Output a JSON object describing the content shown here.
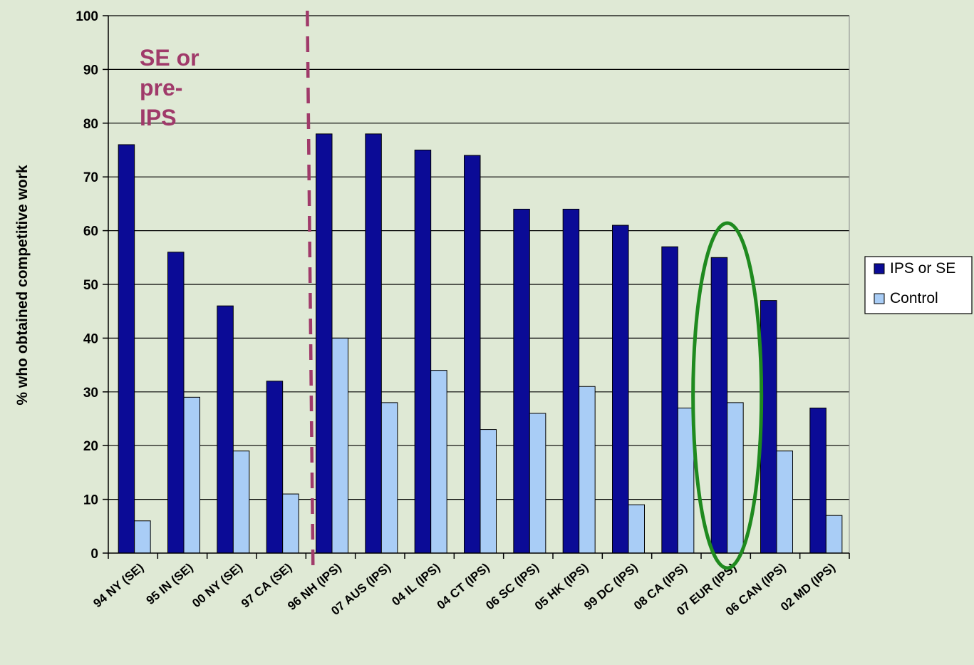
{
  "chart_data": {
    "type": "bar",
    "ylabel": "% who obtained competitive work",
    "xlabel": "",
    "ylim": [
      0,
      100
    ],
    "yticks": [
      0,
      10,
      20,
      30,
      40,
      50,
      60,
      70,
      80,
      90,
      100
    ],
    "grid": true,
    "legend_position": "right",
    "categories": [
      "94 NY (SE)",
      "95 IN (SE)",
      "00 NY (SE)",
      "97 CA (SE)",
      "96 NH (IPS)",
      "07 AUS (IPS)",
      "04 IL (IPS)",
      "04 CT (IPS)",
      "06 SC (IPS)",
      "05 HK (IPS)",
      "99 DC (IPS)",
      "08 CA (IPS)",
      "07 EUR (IPS)",
      "06 CAN (IPS)",
      "02 MD (IPS)"
    ],
    "series": [
      {
        "name": "IPS or SE",
        "color": "#0b0b96",
        "values": [
          76,
          56,
          46,
          32,
          78,
          78,
          75,
          74,
          64,
          64,
          61,
          57,
          55,
          47,
          27
        ]
      },
      {
        "name": "Control",
        "color": "#a9cdf6",
        "values": [
          6,
          29,
          19,
          11,
          40,
          28,
          34,
          23,
          26,
          31,
          9,
          27,
          28,
          19,
          7
        ]
      }
    ],
    "annotations": {
      "divider_text": "SE or pre-IPS",
      "divider_text_lines": [
        "SE or",
        "pre-",
        "IPS"
      ],
      "divider_after_category": "97 CA (SE)",
      "divider_color": "#a03a6a",
      "highlight_category": "07 EUR (IPS)",
      "highlight_color": "#1f8a1f"
    }
  }
}
